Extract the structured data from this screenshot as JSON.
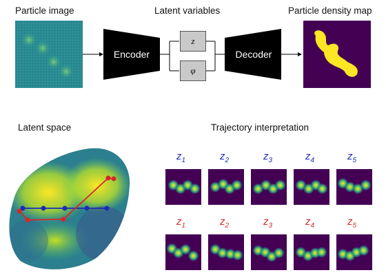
{
  "headings": {
    "particle_image": "Particle image",
    "latent_variables": "Latent variables",
    "density_map": "Particle density map",
    "latent_space": "Latent space",
    "trajectory": "Trajectory interpretation"
  },
  "blocks": {
    "encoder": "Encoder",
    "decoder": "Decoder"
  },
  "latents": {
    "z": "z",
    "phi": "φ"
  },
  "trajectories": {
    "blue_color": "#1c2bb5",
    "red_color": "#d62828",
    "labels": [
      {
        "base": "z",
        "sub": "1"
      },
      {
        "base": "z",
        "sub": "2"
      },
      {
        "base": "z",
        "sub": "3"
      },
      {
        "base": "z",
        "sub": "4"
      },
      {
        "base": "z",
        "sub": "5"
      }
    ]
  },
  "colors": {
    "viridis_dark": "#440154",
    "viridis_yellow": "#fde725",
    "teal": "#21918c"
  }
}
